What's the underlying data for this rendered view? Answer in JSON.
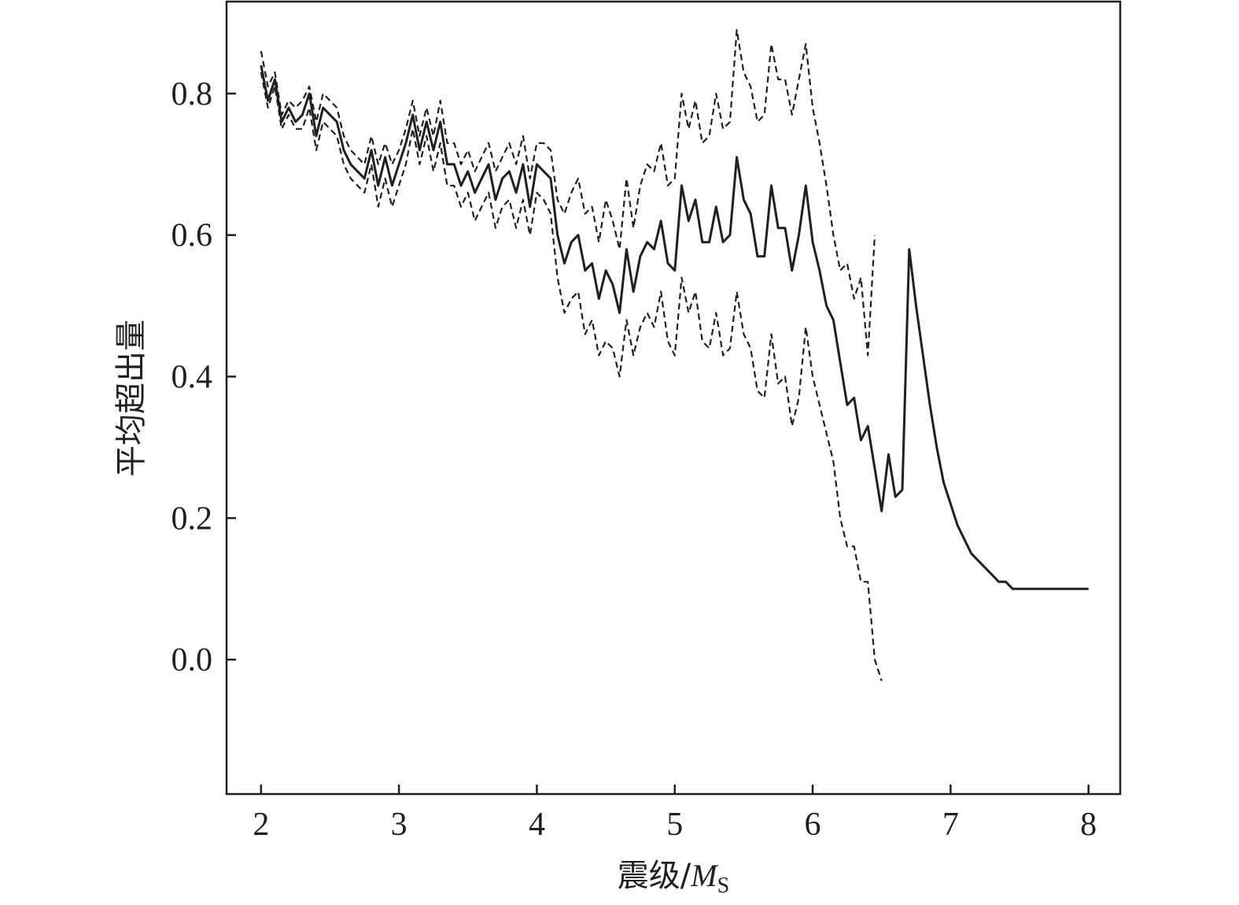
{
  "chart_data": {
    "type": "line",
    "title": "",
    "xlabel": "震级/",
    "xlabel_symbol": "M",
    "xlabel_subscript": "S",
    "ylabel": "平均超出量",
    "xlim": [
      1.75,
      8.23
    ],
    "ylim": [
      -0.19,
      0.93
    ],
    "xticks": [
      2,
      3,
      4,
      5,
      6,
      7,
      8
    ],
    "xtick_labels": [
      "2",
      "3",
      "4",
      "5",
      "6",
      "7",
      "8"
    ],
    "yticks": [
      0.0,
      0.2,
      0.4,
      0.6,
      0.8
    ],
    "ytick_labels": [
      "0.0",
      "0.2",
      "0.4",
      "0.6",
      "0.8"
    ],
    "grid": false,
    "legend": "none",
    "line_color": "#231f20",
    "series": [
      {
        "style": "solid",
        "x": [
          2.0,
          2.05,
          2.1,
          2.15,
          2.2,
          2.25,
          2.3,
          2.35,
          2.4,
          2.45,
          2.5,
          2.55,
          2.6,
          2.65,
          2.7,
          2.75,
          2.8,
          2.85,
          2.9,
          2.95,
          3.0,
          3.05,
          3.1,
          3.15,
          3.2,
          3.25,
          3.3,
          3.35,
          3.4,
          3.45,
          3.5,
          3.55,
          3.6,
          3.65,
          3.7,
          3.75,
          3.8,
          3.85,
          3.9,
          3.95,
          4.0,
          4.05,
          4.1,
          4.15,
          4.2,
          4.25,
          4.3,
          4.35,
          4.4,
          4.45,
          4.5,
          4.55,
          4.6,
          4.65,
          4.7,
          4.75,
          4.8,
          4.85,
          4.9,
          4.95,
          5.0,
          5.05,
          5.1,
          5.15,
          5.2,
          5.25,
          5.3,
          5.35,
          5.4,
          5.45,
          5.5,
          5.55,
          5.6,
          5.65,
          5.7,
          5.75,
          5.8,
          5.85,
          5.9,
          5.95,
          6.0,
          6.05,
          6.1,
          6.15,
          6.2,
          6.25,
          6.3,
          6.35,
          6.4,
          6.45,
          6.5,
          6.55,
          6.6,
          6.65,
          6.7,
          6.75,
          6.8,
          6.85,
          6.9,
          6.95,
          7.0,
          7.05,
          7.1,
          7.15,
          7.2,
          7.25,
          7.3,
          7.35,
          7.4,
          7.45,
          7.5,
          8.0
        ],
        "y": [
          0.84,
          0.79,
          0.82,
          0.76,
          0.78,
          0.76,
          0.77,
          0.8,
          0.74,
          0.78,
          0.77,
          0.76,
          0.72,
          0.7,
          0.69,
          0.68,
          0.72,
          0.67,
          0.71,
          0.67,
          0.7,
          0.73,
          0.77,
          0.72,
          0.76,
          0.72,
          0.76,
          0.7,
          0.7,
          0.67,
          0.69,
          0.66,
          0.68,
          0.7,
          0.65,
          0.68,
          0.69,
          0.66,
          0.7,
          0.64,
          0.7,
          0.69,
          0.68,
          0.6,
          0.56,
          0.59,
          0.6,
          0.55,
          0.56,
          0.51,
          0.55,
          0.53,
          0.49,
          0.58,
          0.52,
          0.57,
          0.59,
          0.58,
          0.62,
          0.56,
          0.55,
          0.67,
          0.62,
          0.65,
          0.59,
          0.59,
          0.64,
          0.59,
          0.6,
          0.71,
          0.65,
          0.63,
          0.57,
          0.57,
          0.67,
          0.61,
          0.61,
          0.55,
          0.6,
          0.67,
          0.59,
          0.55,
          0.5,
          0.48,
          0.42,
          0.36,
          0.37,
          0.31,
          0.33,
          0.27,
          0.21,
          0.29,
          0.23,
          0.24,
          0.58,
          0.5,
          0.43,
          0.36,
          0.3,
          0.25,
          0.22,
          0.19,
          0.17,
          0.15,
          0.14,
          0.13,
          0.12,
          0.11,
          0.11,
          0.1,
          0.1,
          0.1
        ]
      },
      {
        "style": "dashed",
        "x": [
          2.0,
          2.05,
          2.1,
          2.15,
          2.2,
          2.25,
          2.3,
          2.35,
          2.4,
          2.45,
          2.5,
          2.55,
          2.6,
          2.65,
          2.7,
          2.75,
          2.8,
          2.85,
          2.9,
          2.95,
          3.0,
          3.05,
          3.1,
          3.15,
          3.2,
          3.25,
          3.3,
          3.35,
          3.4,
          3.45,
          3.5,
          3.55,
          3.6,
          3.65,
          3.7,
          3.75,
          3.8,
          3.85,
          3.9,
          3.95,
          4.0,
          4.05,
          4.1,
          4.15,
          4.2,
          4.25,
          4.3,
          4.35,
          4.4,
          4.45,
          4.5,
          4.55,
          4.6,
          4.65,
          4.7,
          4.75,
          4.8,
          4.85,
          4.9,
          4.95,
          5.0,
          5.05,
          5.1,
          5.15,
          5.2,
          5.25,
          5.3,
          5.35,
          5.4,
          5.45,
          5.5,
          5.55,
          5.6,
          5.65,
          5.7,
          5.75,
          5.8,
          5.85,
          5.9,
          5.95,
          6.0,
          6.05,
          6.1,
          6.15,
          6.2,
          6.25,
          6.3,
          6.35,
          6.4,
          6.45
        ],
        "y": [
          0.86,
          0.81,
          0.83,
          0.77,
          0.79,
          0.78,
          0.79,
          0.81,
          0.76,
          0.8,
          0.79,
          0.78,
          0.74,
          0.72,
          0.71,
          0.7,
          0.74,
          0.7,
          0.73,
          0.7,
          0.72,
          0.75,
          0.79,
          0.74,
          0.78,
          0.74,
          0.79,
          0.73,
          0.73,
          0.7,
          0.72,
          0.69,
          0.71,
          0.73,
          0.69,
          0.71,
          0.73,
          0.7,
          0.74,
          0.68,
          0.73,
          0.73,
          0.72,
          0.65,
          0.63,
          0.66,
          0.68,
          0.63,
          0.64,
          0.59,
          0.65,
          0.62,
          0.58,
          0.68,
          0.61,
          0.67,
          0.7,
          0.69,
          0.73,
          0.67,
          0.68,
          0.8,
          0.75,
          0.79,
          0.73,
          0.74,
          0.8,
          0.75,
          0.76,
          0.89,
          0.83,
          0.81,
          0.76,
          0.77,
          0.87,
          0.82,
          0.82,
          0.77,
          0.82,
          0.87,
          0.78,
          0.73,
          0.67,
          0.6,
          0.55,
          0.56,
          0.51,
          0.54,
          0.43,
          0.6
        ]
      },
      {
        "style": "dashed",
        "x": [
          2.0,
          2.05,
          2.1,
          2.15,
          2.2,
          2.25,
          2.3,
          2.35,
          2.4,
          2.45,
          2.5,
          2.55,
          2.6,
          2.65,
          2.7,
          2.75,
          2.8,
          2.85,
          2.9,
          2.95,
          3.0,
          3.05,
          3.1,
          3.15,
          3.2,
          3.25,
          3.3,
          3.35,
          3.4,
          3.45,
          3.5,
          3.55,
          3.6,
          3.65,
          3.7,
          3.75,
          3.8,
          3.85,
          3.9,
          3.95,
          4.0,
          4.05,
          4.1,
          4.15,
          4.2,
          4.25,
          4.3,
          4.35,
          4.4,
          4.45,
          4.5,
          4.55,
          4.6,
          4.65,
          4.7,
          4.75,
          4.8,
          4.85,
          4.9,
          4.95,
          5.0,
          5.05,
          5.1,
          5.15,
          5.2,
          5.25,
          5.3,
          5.35,
          5.4,
          5.45,
          5.5,
          5.55,
          5.6,
          5.65,
          5.7,
          5.75,
          5.8,
          5.85,
          5.9,
          5.95,
          6.0,
          6.05,
          6.1,
          6.15,
          6.2,
          6.25,
          6.3,
          6.35,
          6.4,
          6.45,
          6.5
        ],
        "y": [
          0.83,
          0.78,
          0.81,
          0.75,
          0.77,
          0.75,
          0.75,
          0.78,
          0.72,
          0.76,
          0.75,
          0.74,
          0.7,
          0.68,
          0.67,
          0.66,
          0.7,
          0.64,
          0.68,
          0.64,
          0.67,
          0.7,
          0.75,
          0.7,
          0.74,
          0.69,
          0.73,
          0.67,
          0.67,
          0.64,
          0.66,
          0.62,
          0.64,
          0.66,
          0.61,
          0.64,
          0.65,
          0.61,
          0.65,
          0.6,
          0.66,
          0.65,
          0.63,
          0.54,
          0.49,
          0.51,
          0.52,
          0.46,
          0.48,
          0.43,
          0.45,
          0.44,
          0.4,
          0.48,
          0.43,
          0.47,
          0.49,
          0.47,
          0.52,
          0.45,
          0.43,
          0.54,
          0.49,
          0.52,
          0.45,
          0.44,
          0.49,
          0.43,
          0.44,
          0.52,
          0.46,
          0.44,
          0.38,
          0.37,
          0.46,
          0.39,
          0.4,
          0.33,
          0.37,
          0.47,
          0.4,
          0.36,
          0.32,
          0.28,
          0.2,
          0.16,
          0.16,
          0.11,
          0.11,
          0.0,
          -0.03
        ]
      }
    ]
  }
}
